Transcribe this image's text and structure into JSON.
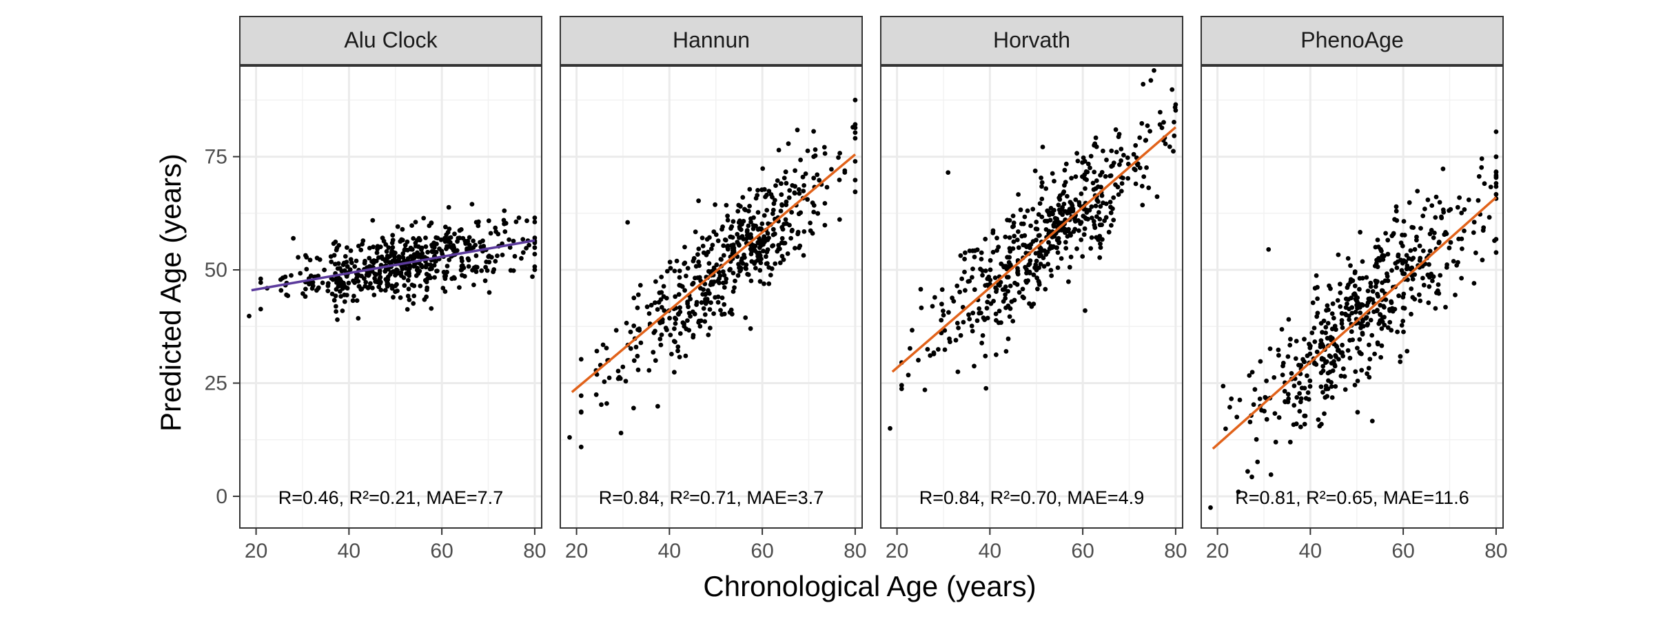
{
  "chart_data": {
    "type": "scatter",
    "xlabel": "Chronological Age (years)",
    "ylabel": "Predicted Age (years)",
    "xlim": [
      16.5,
      81.5
    ],
    "ylim": [
      -7,
      95
    ],
    "xticks": [
      20,
      40,
      60,
      80
    ],
    "yticks": [
      0,
      25,
      50,
      75
    ],
    "grid": true,
    "panels": [
      {
        "title": "Alu Clock",
        "annotation": "R=0.46, R²=0.21, MAE=7.7",
        "line_color": "#5b3a9c",
        "fit": {
          "x": [
            19,
            80
          ],
          "y": [
            45.5,
            56.5
          ]
        },
        "trend": {
          "slope": 0.18,
          "intercept": 42.1,
          "noise": 3.6
        },
        "outliers": [
          [
            18.5,
            39.8
          ],
          [
            37.5,
            39.0
          ],
          [
            42.0,
            39.3
          ],
          [
            61.5,
            63.8
          ],
          [
            66.5,
            64.5
          ],
          [
            79.5,
            48.5
          ],
          [
            80.0,
            61.5
          ]
        ]
      },
      {
        "title": "Hannun",
        "annotation": "R=0.84, R²=0.71, MAE=3.7",
        "line_color": "#e1621a",
        "fit": {
          "x": [
            19,
            80
          ],
          "y": [
            23.0,
            75.5
          ]
        },
        "trend": {
          "slope": 0.86,
          "intercept": 6.6,
          "noise": 6.0
        },
        "outliers": [
          [
            18.5,
            13.0
          ],
          [
            26.5,
            20.5
          ],
          [
            31.0,
            60.5
          ],
          [
            80.0,
            87.5
          ],
          [
            43.5,
            31.0
          ],
          [
            79.5,
            81.5
          ]
        ]
      },
      {
        "title": "Horvath",
        "annotation": "R=0.84, R²=0.70, MAE=4.9",
        "line_color": "#e1621a",
        "fit": {
          "x": [
            19,
            80
          ],
          "y": [
            27.5,
            81.5
          ]
        },
        "trend": {
          "slope": 0.885,
          "intercept": 10.7,
          "noise": 6.5
        },
        "outliers": [
          [
            18.5,
            15.0
          ],
          [
            26.0,
            23.5
          ],
          [
            31.0,
            71.5
          ],
          [
            60.5,
            41.0
          ],
          [
            73.0,
            91.0
          ],
          [
            80.0,
            86.5
          ],
          [
            43.5,
            32.0
          ]
        ]
      },
      {
        "title": "PhenoAge",
        "annotation": "R=0.81, R²=0.65, MAE=11.6",
        "line_color": "#e1621a",
        "fit": {
          "x": [
            19,
            80
          ],
          "y": [
            10.5,
            66.0
          ]
        },
        "trend": {
          "slope": 0.91,
          "intercept": -6.8,
          "noise": 7.5
        },
        "outliers": [
          [
            18.5,
            -2.5
          ],
          [
            26.5,
            5.5
          ],
          [
            31.0,
            54.5
          ],
          [
            80.0,
            80.5
          ],
          [
            29.5,
            19.0
          ],
          [
            42.0,
            15.5
          ]
        ]
      }
    ]
  }
}
